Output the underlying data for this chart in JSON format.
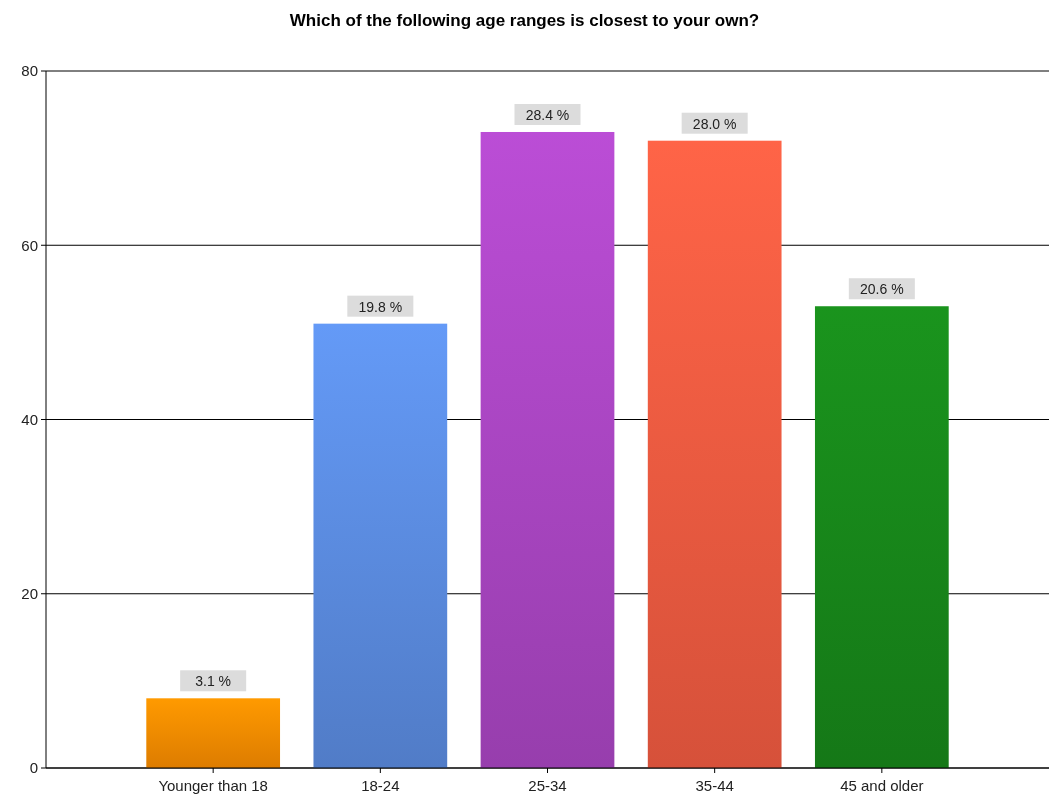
{
  "chart_data": {
    "type": "bar",
    "title": "Which of the following age ranges is closest to your own?",
    "categories": [
      "Younger than 18",
      "18-24",
      "25-34",
      "35-44",
      "45 and older"
    ],
    "values": [
      8,
      51,
      73,
      72,
      53
    ],
    "colors": [
      "#f68a00",
      "#5a8ade",
      "#a845c0",
      "#ee5a40",
      "#17851a"
    ],
    "annotations": [
      {
        "text": "3.1 %",
        "x": "Younger than 18",
        "y": 8
      },
      {
        "text": "19.8 %",
        "x": "18-24",
        "y": 51
      },
      {
        "text": "28.4 %",
        "x": "25-34",
        "y": 73
      },
      {
        "text": "28.0 %",
        "x": "35-44",
        "y": 72
      },
      {
        "text": "20.6 %",
        "x": "45 and older",
        "y": 53
      }
    ],
    "ylim": [
      0,
      80
    ],
    "yticks": [
      0,
      20,
      40,
      60,
      80
    ],
    "grid": "y"
  }
}
